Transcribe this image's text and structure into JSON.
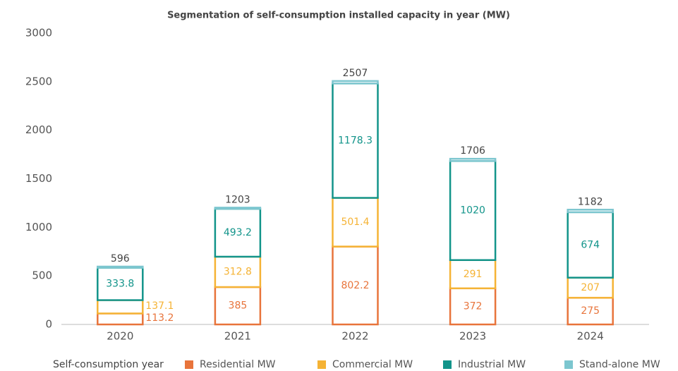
{
  "chart_data": {
    "type": "stacked_bar",
    "title": "Segmentation of self-consumption installed capacity in year (MW)",
    "categories": [
      "2020",
      "2021",
      "2022",
      "2023",
      "2024"
    ],
    "legend_title": "Self-consumption year",
    "series": [
      {
        "name": "Residential MW",
        "color": "#e8743b",
        "values": [
          113.2,
          385,
          802.2,
          372,
          275
        ]
      },
      {
        "name": "Commercial MW",
        "color": "#f5b335",
        "values": [
          137.1,
          312.8,
          501.4,
          291,
          207
        ]
      },
      {
        "name": "Industrial MW",
        "color": "#12948a",
        "values": [
          333.8,
          493.2,
          1178.3,
          1020,
          674
        ]
      },
      {
        "name": "Stand-alone MW",
        "color": "#7cc6cf",
        "values": [
          11.9,
          12,
          25.1,
          23,
          26
        ]
      }
    ],
    "totals": [
      596,
      1203,
      2507,
      1706,
      1182
    ],
    "ylim": [
      0,
      3000
    ],
    "yticks": [
      0,
      500,
      1000,
      1500,
      2000,
      2500,
      3000
    ],
    "grid": false,
    "legend": "bottom"
  }
}
